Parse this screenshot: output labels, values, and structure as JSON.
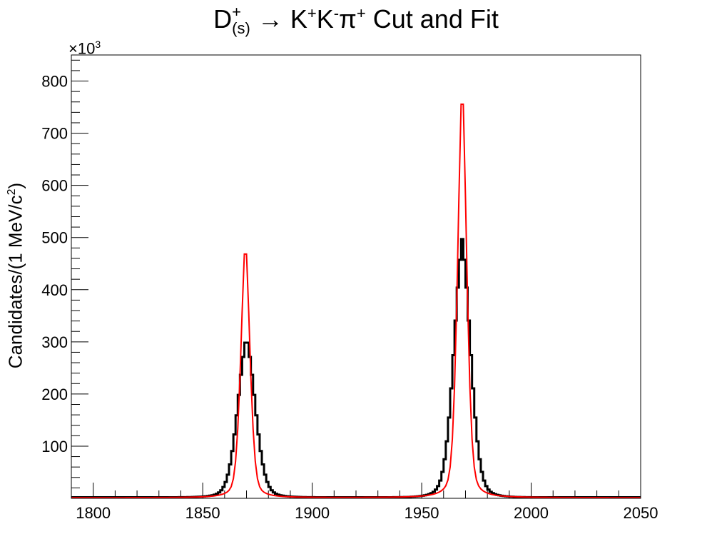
{
  "chart_data": {
    "type": "line",
    "title_parts": {
      "d": "D",
      "d_sup": "+",
      "d_sub": "(s)",
      "arrow": "→",
      "k1": "K",
      "k1_sup": "+",
      "k2": "K",
      "k2_sup": "-",
      "pi": "π",
      "pi_sup": "+",
      "tail": "Cut and Fit"
    },
    "ylabel_main": "Candidates/(1 MeV/c",
    "ylabel_sup": "2",
    "ylabel_close": ")",
    "y_scale_base": "×10",
    "y_scale_exp": "3",
    "xlim": [
      1790,
      2050
    ],
    "ylim": [
      0,
      850
    ],
    "x_ticks": [
      "1800",
      "1850",
      "1900",
      "1950",
      "2000",
      "2050"
    ],
    "y_ticks": [
      "100",
      "200",
      "300",
      "400",
      "500",
      "600",
      "700",
      "800"
    ],
    "series": [
      {
        "name": "data histogram",
        "style": "step",
        "color": "#000000",
        "peaks": [
          {
            "center": 1870,
            "height": 307,
            "sigma": 4.2,
            "tail": 4.8
          },
          {
            "center": 1968.5,
            "height": 495,
            "sigma": 4.0,
            "tail": 4.6
          }
        ],
        "baseline": 2,
        "bin_width": 1
      },
      {
        "name": "fit",
        "style": "line",
        "color": "#ff0000",
        "peaks": [
          {
            "center": 1869.5,
            "height": 488,
            "gsigma": 2.2,
            "lwidth": 2.0,
            "gfrac": 0.6
          },
          {
            "center": 1968.5,
            "height": 788,
            "gsigma": 2.2,
            "lwidth": 2.0,
            "gfrac": 0.6
          }
        ],
        "baseline": 1,
        "step": 1
      }
    ]
  }
}
